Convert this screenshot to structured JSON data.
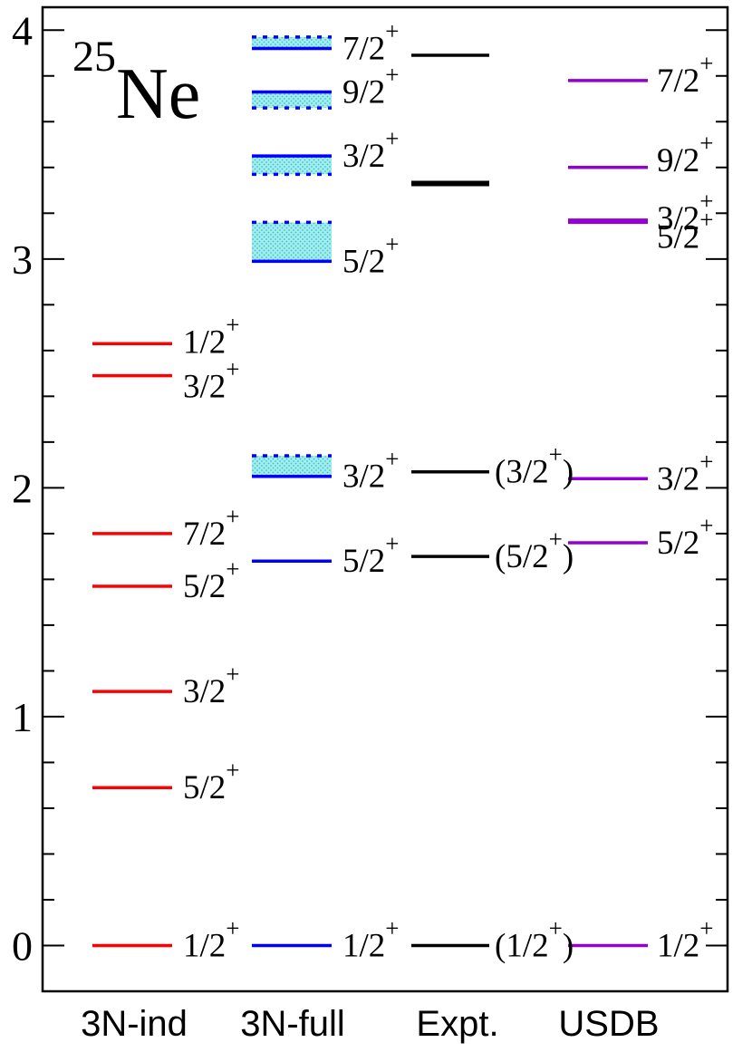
{
  "chart_data": {
    "type": "level-scheme",
    "nucleus": {
      "mass": "25",
      "symbol": "Ne"
    },
    "ylim": [
      -0.2,
      4.1
    ],
    "y_ticks": [
      "0",
      "1",
      "2",
      "3",
      "4"
    ],
    "columns": [
      {
        "name": "3N-ind",
        "color": "#ff0000",
        "levels": [
          {
            "e": 0.0,
            "label": "1/2",
            "parity": "+"
          },
          {
            "e": 0.69,
            "label": "5/2",
            "parity": "+"
          },
          {
            "e": 1.11,
            "label": "3/2",
            "parity": "+"
          },
          {
            "e": 1.57,
            "label": "5/2",
            "parity": "+"
          },
          {
            "e": 1.8,
            "label": "7/2",
            "parity": "+"
          },
          {
            "e": 2.49,
            "label": "3/2",
            "parity": "+"
          },
          {
            "e": 2.63,
            "label": "1/2",
            "parity": "+"
          }
        ]
      },
      {
        "name": "3N-full",
        "color": "#0000ff",
        "band_color": "#7fe0e0",
        "levels": [
          {
            "e": 0.0,
            "label": "1/2",
            "parity": "+"
          },
          {
            "e": 1.68,
            "label": "5/2",
            "parity": "+"
          },
          {
            "e": 2.05,
            "e_high": 2.14,
            "label": "3/2",
            "parity": "+"
          },
          {
            "e": 2.99,
            "e_high": 3.16,
            "label": "5/2",
            "parity": "+"
          },
          {
            "e": 3.45,
            "e_low": 3.37,
            "label": "3/2",
            "parity": "+"
          },
          {
            "e": 3.73,
            "e_low": 3.66,
            "label": "9/2",
            "parity": "+"
          },
          {
            "e": 3.92,
            "e_high": 3.97,
            "label": "7/2",
            "parity": "+"
          }
        ]
      },
      {
        "name": "Expt.",
        "color": "#000000",
        "levels": [
          {
            "e": 0.0,
            "label": "(1/2",
            "parity": "+",
            "close": ")"
          },
          {
            "e": 1.7,
            "label": "(5/2",
            "parity": "+",
            "close": ")"
          },
          {
            "e": 2.07,
            "label": "(3/2",
            "parity": "+",
            "close": ")"
          },
          {
            "e": 3.33,
            "label": "",
            "thick": true
          },
          {
            "e": 3.89,
            "label": ""
          }
        ]
      },
      {
        "name": "USDB",
        "color": "#9400d3",
        "levels": [
          {
            "e": 0.0,
            "label": "1/2",
            "parity": "+"
          },
          {
            "e": 1.76,
            "label": "5/2",
            "parity": "+"
          },
          {
            "e": 2.04,
            "label": "3/2",
            "parity": "+"
          },
          {
            "e": 3.16,
            "label": "5/2",
            "parity": "+"
          },
          {
            "e": 3.17,
            "label": "3/2",
            "parity": "+"
          },
          {
            "e": 3.4,
            "label": "9/2",
            "parity": "+"
          },
          {
            "e": 3.78,
            "label": "7/2",
            "parity": "+"
          }
        ]
      }
    ]
  }
}
